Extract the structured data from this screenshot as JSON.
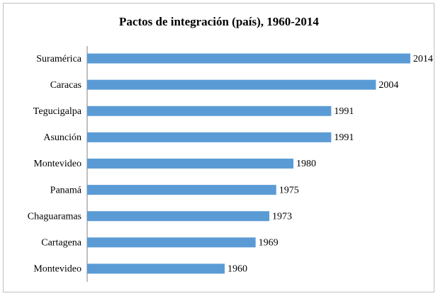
{
  "chart_data": {
    "type": "barh",
    "title": "Pactos de integración (país), 1960-2014",
    "categories": [
      "Suramérica",
      "Caracas",
      "Tegucigalpa",
      "Asunción",
      "Montevideo",
      "Panamá",
      "Chaguaramas",
      "Cartagena",
      "Montevideo"
    ],
    "values": [
      2014,
      2004,
      1991,
      1991,
      1980,
      1975,
      1973,
      1969,
      1960
    ],
    "color": "#5b9bd5",
    "xlim": [
      1920,
      2020
    ]
  }
}
